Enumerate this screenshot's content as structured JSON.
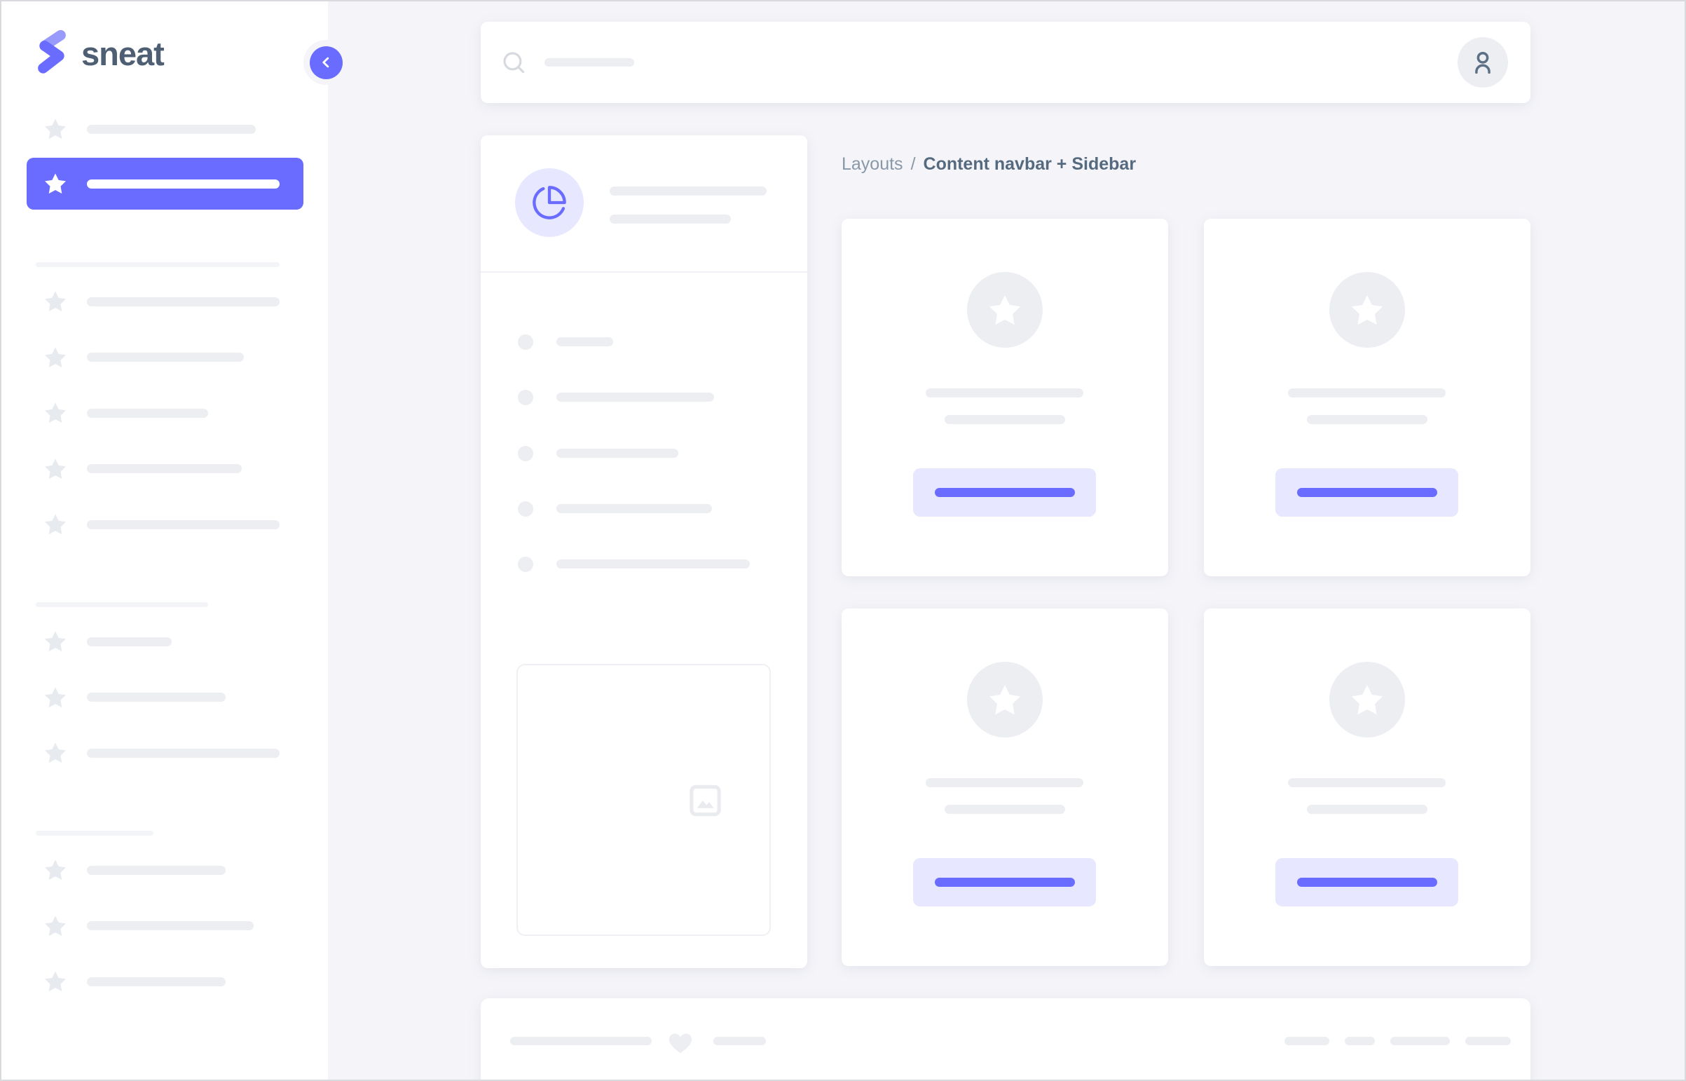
{
  "colors": {
    "primary": "#696cff",
    "primary_light": "#e7e7ff",
    "skeleton": "#eceef1",
    "skeleton_light": "#f3f4f7",
    "page_bg": "#f5f5f9",
    "card_bg": "#ffffff",
    "heading_text": "#566a7f",
    "muted_text": "#8998a8"
  },
  "sidebar": {
    "brand": {
      "name": "sneat",
      "logo_icon": "sneat-logo-icon"
    },
    "collapse_button": {
      "icon": "chevron-left-icon"
    },
    "item_icon": "star-icon",
    "first_item_bar_width": 241,
    "active_item_bar_width": 275,
    "sections": [
      {
        "header_bar_width": 348,
        "item_bar_widths": [
          275,
          224,
          173,
          221,
          275
        ]
      },
      {
        "header_bar_width": 246,
        "item_bar_widths": [
          121,
          198,
          275
        ]
      },
      {
        "header_bar_width": 168,
        "item_bar_widths": [
          198,
          238,
          198
        ]
      }
    ]
  },
  "navbar": {
    "search_icon": "search-icon",
    "search_bar_width": 128,
    "avatar_icon": "person-icon"
  },
  "breadcrumb": {
    "parent": "Layouts",
    "separator": "/",
    "current": "Content navbar + Sidebar"
  },
  "demo_card": {
    "avatar_icon": "pie-chart-icon",
    "header_bar_widths": [
      224,
      173
    ],
    "list_row_bar_widths": [
      81,
      225,
      174,
      222,
      276
    ],
    "placeholder_icon": "image-icon"
  },
  "grid_cards": [
    {
      "avatar_icon": "star-icon",
      "line_widths": [
        225,
        172
      ],
      "button_bar_width": 200
    },
    {
      "avatar_icon": "star-icon",
      "line_widths": [
        225,
        172
      ],
      "button_bar_width": 200
    },
    {
      "avatar_icon": "star-icon",
      "line_widths": [
        225,
        172
      ],
      "button_bar_width": 200
    },
    {
      "avatar_icon": "star-icon",
      "line_widths": [
        225,
        172
      ],
      "button_bar_width": 200
    }
  ],
  "bottom_card": {
    "left_bar_widths": [
      202,
      75
    ],
    "heart_icon": "heart-icon",
    "right_dash_widths": [
      64,
      43,
      85,
      65
    ]
  }
}
